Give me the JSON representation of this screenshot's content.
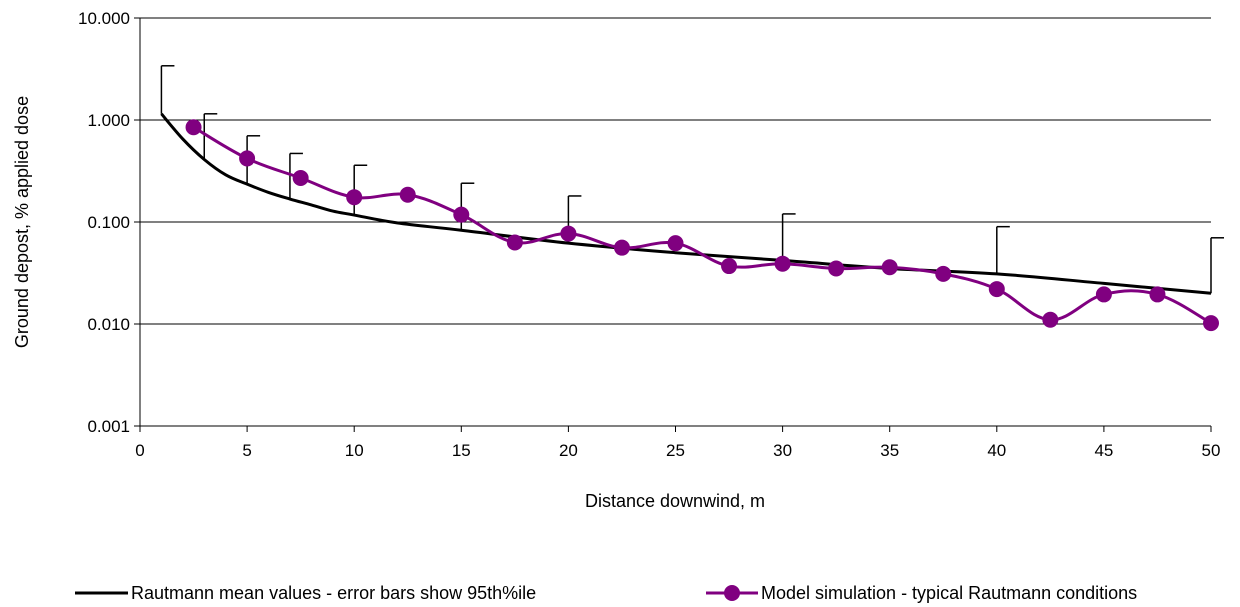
{
  "chart_data": {
    "type": "line",
    "title": "",
    "xlabel": "Distance downwind, m",
    "ylabel": "Ground depost, % applied dose",
    "x_ticks": [
      "0",
      "5",
      "10",
      "15",
      "20",
      "25",
      "30",
      "35",
      "40",
      "45",
      "50"
    ],
    "y_ticks": [
      "10.000",
      "1.000",
      "0.100",
      "0.010",
      "0.001"
    ],
    "xlim": [
      0,
      50
    ],
    "ylim": [
      0.001,
      10
    ],
    "y_scale": "log",
    "grid": "horizontal",
    "legend_position": "bottom",
    "series": [
      {
        "name": "Rautmann mean values - error bars show 95th%ile",
        "color": "#000000",
        "marker": "none",
        "x": [
          1,
          2,
          3,
          4,
          5,
          6,
          7,
          8,
          9,
          10,
          12,
          15,
          20,
          25,
          30,
          35,
          40,
          45,
          50
        ],
        "y": [
          1.15,
          0.65,
          0.41,
          0.29,
          0.235,
          0.195,
          0.168,
          0.147,
          0.128,
          0.117,
          0.098,
          0.083,
          0.062,
          0.05,
          0.042,
          0.035,
          0.031,
          0.025,
          0.02
        ],
        "error_bars": [
          {
            "x": 1,
            "upper": 3.4
          },
          {
            "x": 3,
            "upper": 1.15
          },
          {
            "x": 5,
            "upper": 0.7
          },
          {
            "x": 7,
            "upper": 0.47
          },
          {
            "x": 10,
            "upper": 0.36
          },
          {
            "x": 15,
            "upper": 0.24
          },
          {
            "x": 20,
            "upper": 0.18
          },
          {
            "x": 30,
            "upper": 0.12
          },
          {
            "x": 40,
            "upper": 0.09
          },
          {
            "x": 50,
            "upper": 0.07
          }
        ]
      },
      {
        "name": "Model simulation - typical Rautmann conditions",
        "color": "#800080",
        "marker": "circle",
        "x": [
          2.5,
          5,
          7.5,
          10,
          12.5,
          15,
          17.5,
          20,
          22.5,
          25,
          27.5,
          30,
          32.5,
          35,
          37.5,
          40,
          42.5,
          45,
          47.5,
          50
        ],
        "y": [
          0.85,
          0.42,
          0.27,
          0.175,
          0.185,
          0.118,
          0.063,
          0.077,
          0.056,
          0.062,
          0.037,
          0.039,
          0.035,
          0.036,
          0.031,
          0.022,
          0.011,
          0.0195,
          0.0195,
          0.0102
        ]
      }
    ]
  }
}
